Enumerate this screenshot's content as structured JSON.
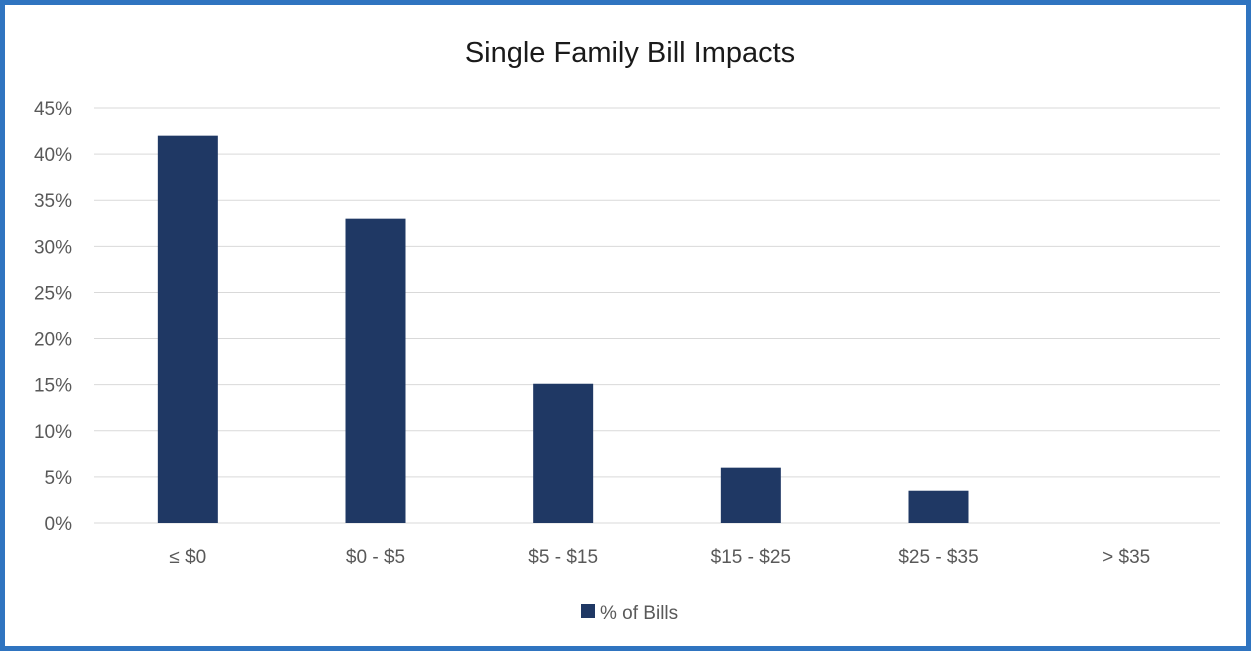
{
  "chart_data": {
    "type": "bar",
    "title": "Single Family Bill Impacts",
    "categories": [
      "≤ $0",
      "$0 - $5",
      "$5 - $15",
      "$15 - $25",
      "$25 - $35",
      "> $35"
    ],
    "series": [
      {
        "name": "% of Bills",
        "values": [
          42.0,
          33.0,
          15.1,
          6.0,
          3.5,
          0.0
        ]
      }
    ],
    "ylim": [
      0,
      45
    ],
    "yticks": [
      "0%",
      "5%",
      "10%",
      "15%",
      "20%",
      "25%",
      "30%",
      "35%",
      "40%",
      "45%"
    ],
    "ytick_values": [
      0,
      5,
      10,
      15,
      20,
      25,
      30,
      35,
      40,
      45
    ],
    "grid": true,
    "legend_position": "bottom",
    "colors": {
      "bar": "#1f3864",
      "grid": "#d9d9d9",
      "frame": "#2f74c0"
    }
  }
}
